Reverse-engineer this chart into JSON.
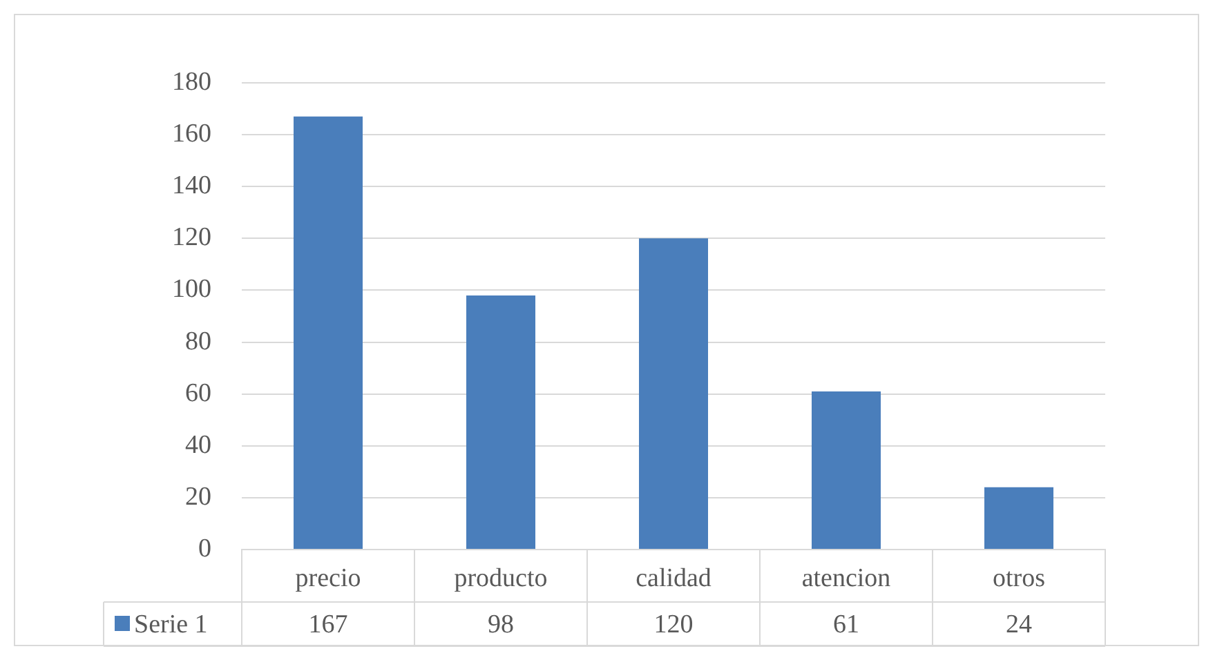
{
  "chart_data": {
    "type": "bar",
    "categories": [
      "precio",
      "producto",
      "calidad",
      "atencion",
      "otros"
    ],
    "series": [
      {
        "name": "Serie 1",
        "color": "#4a7ebb",
        "values": [
          167,
          98,
          120,
          61,
          24
        ]
      }
    ],
    "ylim": [
      0,
      180
    ],
    "yticks": [
      0,
      20,
      40,
      60,
      80,
      100,
      120,
      140,
      160,
      180
    ],
    "grid": "y",
    "legend": "bottom",
    "data_labels": true
  }
}
